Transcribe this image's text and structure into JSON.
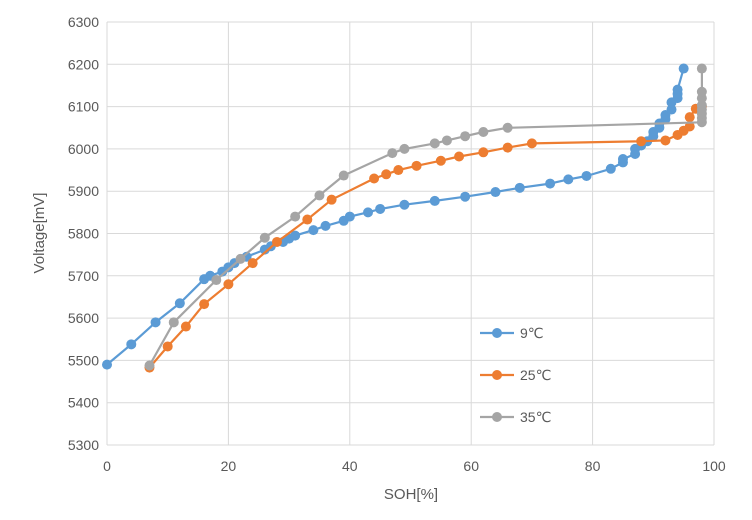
{
  "chart_data": {
    "type": "line",
    "xlabel": "SOH[%]",
    "ylabel": "Voltage[mV]",
    "xlim": [
      0,
      100
    ],
    "ylim": [
      5300,
      6300
    ],
    "xticks": [
      0,
      20,
      40,
      60,
      80,
      100
    ],
    "yticks": [
      5300,
      5400,
      5500,
      5600,
      5700,
      5800,
      5900,
      6000,
      6100,
      6200,
      6300
    ],
    "grid": true,
    "legend_position": "bottom-right",
    "series": [
      {
        "name": "9℃",
        "color": "#5B9BD5",
        "x": [
          0,
          4,
          8,
          12,
          16,
          17,
          19,
          20,
          21,
          23,
          26,
          27,
          29,
          30,
          31,
          34,
          36,
          39,
          40,
          43,
          45,
          49,
          54,
          59,
          64,
          68,
          73,
          76,
          79,
          83,
          85,
          85,
          87,
          87,
          88,
          89,
          90,
          90,
          91,
          91,
          92,
          92,
          93,
          93,
          94,
          94,
          94,
          95
        ],
        "y": [
          5490,
          5538,
          5590,
          5635,
          5692,
          5700,
          5710,
          5720,
          5730,
          5745,
          5762,
          5770,
          5780,
          5788,
          5795,
          5808,
          5818,
          5830,
          5840,
          5850,
          5858,
          5868,
          5877,
          5887,
          5898,
          5908,
          5918,
          5928,
          5936,
          5953,
          5968,
          5976,
          5988,
          6000,
          6008,
          6018,
          6030,
          6040,
          6050,
          6060,
          6070,
          6080,
          6093,
          6110,
          6120,
          6130,
          6140,
          6190
        ]
      },
      {
        "name": "25℃",
        "color": "#ED7D31",
        "x": [
          7,
          10,
          13,
          16,
          20,
          24,
          28,
          33,
          37,
          44,
          46,
          48,
          51,
          55,
          58,
          62,
          66,
          70,
          88,
          92,
          94,
          95,
          96,
          96,
          97,
          98
        ],
        "y": [
          5483,
          5533,
          5580,
          5633,
          5680,
          5730,
          5780,
          5833,
          5880,
          5930,
          5940,
          5950,
          5960,
          5972,
          5982,
          5992,
          6003,
          6013,
          6018,
          6020,
          6033,
          6043,
          6053,
          6075,
          6095,
          6100
        ]
      },
      {
        "name": "35℃",
        "color": "#A5A5A5",
        "x": [
          7,
          11,
          18,
          22,
          26,
          31,
          35,
          39,
          47,
          49,
          54,
          56,
          59,
          62,
          66,
          98,
          98,
          98,
          98,
          98,
          98,
          98,
          98
        ],
        "y": [
          5488,
          5590,
          5690,
          5740,
          5790,
          5840,
          5890,
          5937,
          5990,
          6000,
          6013,
          6020,
          6030,
          6040,
          6050,
          6063,
          6073,
          6083,
          6093,
          6103,
          6120,
          6135,
          6190
        ]
      }
    ]
  }
}
